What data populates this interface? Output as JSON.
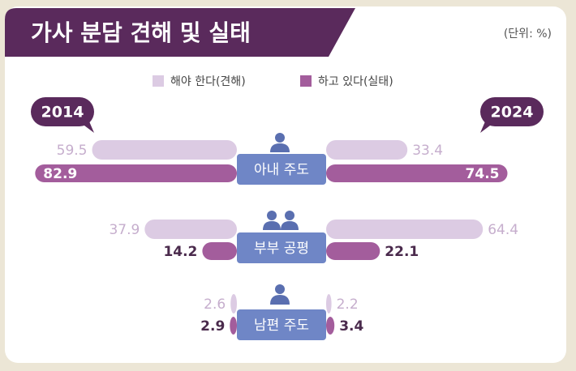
{
  "chart_data": {
    "type": "butterfly",
    "title": "가사 분담 견해 및 실태",
    "unit": "(단위: %)",
    "categories": [
      "아내 주도",
      "부부 공평",
      "남편 주도"
    ],
    "series": [
      {
        "name": "해야 한다(견해)",
        "color": "#dccbe3"
      },
      {
        "name": "하고 있다(실태)",
        "color": "#a35d9c"
      }
    ],
    "panels": [
      {
        "label": "2014",
        "series_values": [
          [
            59.5,
            37.9,
            2.6
          ],
          [
            82.9,
            14.2,
            2.9
          ]
        ]
      },
      {
        "label": "2024",
        "series_values": [
          [
            33.4,
            64.4,
            2.2
          ],
          [
            74.5,
            22.1,
            3.4
          ]
        ]
      }
    ]
  }
}
